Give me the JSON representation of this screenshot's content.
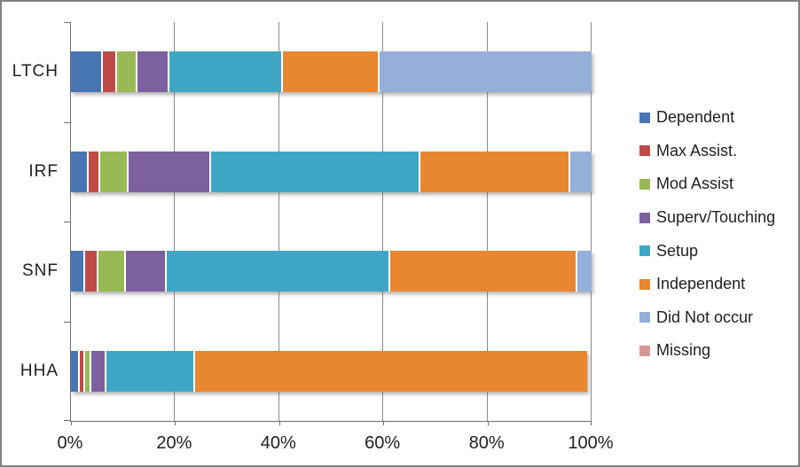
{
  "chart_data": {
    "type": "bar",
    "subtype": "stacked-horizontal-100percent",
    "title": "",
    "xlabel": "",
    "ylabel": "",
    "categories": [
      "LTCH",
      "IRF",
      "SNF",
      "HHA"
    ],
    "x_ticks": [
      {
        "label": "0%",
        "value": 0
      },
      {
        "label": "20%",
        "value": 20
      },
      {
        "label": "40%",
        "value": 40
      },
      {
        "label": "60%",
        "value": 60
      },
      {
        "label": "80%",
        "value": 80
      },
      {
        "label": "100%",
        "value": 100
      }
    ],
    "xlim": [
      0,
      100
    ],
    "grid": true,
    "legend_position": "right",
    "series": [
      {
        "name": "Dependent",
        "color": "#4876B4",
        "values": [
          5.8,
          3.1,
          2.4,
          1.3
        ]
      },
      {
        "name": "Max Assist.",
        "color": "#BE4B48",
        "values": [
          2.8,
          2.1,
          2.5,
          1.1
        ]
      },
      {
        "name": "Mod Assist",
        "color": "#98B954",
        "values": [
          3.8,
          5.5,
          5.3,
          1.1
        ]
      },
      {
        "name": "Superv/Touching",
        "color": "#7D60A0",
        "values": [
          6.1,
          15.8,
          7.9,
          3.0
        ]
      },
      {
        "name": "Setup",
        "color": "#3FA7C5",
        "values": [
          21.9,
          40.3,
          42.9,
          17.0
        ]
      },
      {
        "name": "Independent",
        "color": "#E8872F",
        "values": [
          18.6,
          28.7,
          35.9,
          75.6
        ]
      },
      {
        "name": "Did Not occur",
        "color": "#94AFD8",
        "values": [
          41.0,
          4.5,
          3.1,
          0
        ]
      },
      {
        "name": "Missing",
        "color": "#D99795",
        "values": [
          0,
          0,
          0,
          0
        ]
      }
    ]
  },
  "colors": {
    "frame_border": "#808080",
    "gridline": "#8a8a8a",
    "axis": "#6e6e6e",
    "text": "#1f1f1f",
    "separator": "#ffffff",
    "background": "#ffffff"
  }
}
